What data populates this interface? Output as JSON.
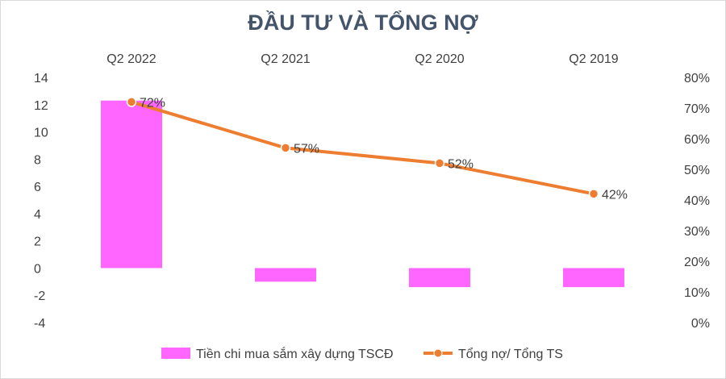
{
  "chart_data": {
    "type": "bar+line",
    "title": "ĐẦU TƯ VÀ TỔNG NỢ",
    "categories": [
      "Q2 2022",
      "Q2 2021",
      "Q2 2020",
      "Q2 2019"
    ],
    "series": [
      {
        "name": "Tiền chi mua sắm xây dựng TSCĐ",
        "type": "bar",
        "axis": "left",
        "color": "#ff66ff",
        "values": [
          12.3,
          -1.0,
          -1.4,
          -1.4
        ]
      },
      {
        "name": "Tổng nợ/ Tổng TS",
        "type": "line",
        "axis": "right",
        "color": "#ed7d31",
        "values": [
          0.72,
          0.57,
          0.52,
          0.42
        ],
        "labels": [
          "72%",
          "57%",
          "52%",
          "42%"
        ]
      }
    ],
    "y_left": {
      "min": -4,
      "max": 14,
      "step": 2,
      "tick_labels": [
        "-4",
        "-2",
        "0",
        "2",
        "4",
        "6",
        "8",
        "10",
        "12",
        "14"
      ]
    },
    "y_right": {
      "min": 0,
      "max": 0.8,
      "step": 0.1,
      "tick_labels": [
        "0%",
        "10%",
        "20%",
        "30%",
        "40%",
        "50%",
        "60%",
        "70%",
        "80%"
      ]
    },
    "category_axis_position": "top",
    "grid": false,
    "legend_position": "bottom"
  }
}
